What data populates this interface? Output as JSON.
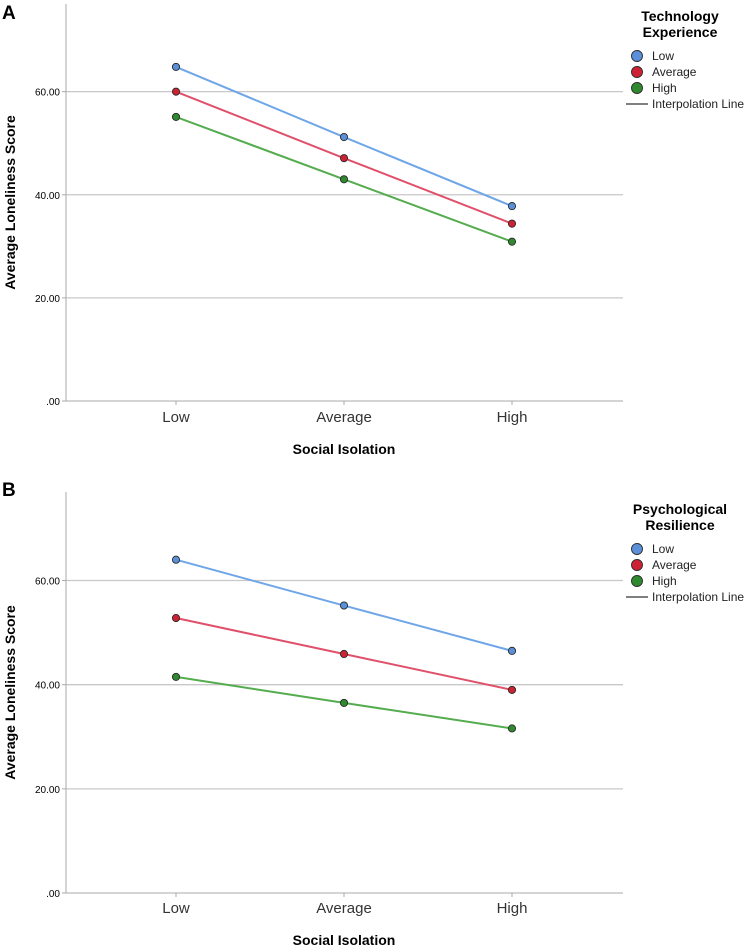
{
  "chart_data": [
    {
      "type": "line",
      "panel_label": "A",
      "categories": [
        "Low",
        "Average",
        "High"
      ],
      "xlabel": "Social Isolation",
      "ylabel": "Average Loneliness Score",
      "ylim": [
        0,
        77
      ],
      "yticks": [
        0,
        20,
        40,
        60
      ],
      "ytick_labels": [
        ".00",
        "20.00",
        "40.00",
        "60.00"
      ],
      "legend": {
        "title_lines": [
          "Technology",
          "Experience"
        ],
        "position": "top-right",
        "interpolation_label": "Interpolation Line"
      },
      "series": [
        {
          "name": "Low",
          "color": "#6fa6e8",
          "marker_color": "#5b8fd9",
          "values": [
            64.8,
            51.2,
            37.8
          ]
        },
        {
          "name": "Average",
          "color": "#e0506b",
          "marker_color": "#cc2233",
          "values": [
            60.0,
            47.1,
            34.4
          ]
        },
        {
          "name": "High",
          "color": "#55ac4f",
          "marker_color": "#2f8a2f",
          "values": [
            55.1,
            43.0,
            30.9
          ]
        }
      ]
    },
    {
      "type": "line",
      "panel_label": "B",
      "categories": [
        "Low",
        "Average",
        "High"
      ],
      "xlabel": "Social Isolation",
      "ylabel": "Average Loneliness Score",
      "ylim": [
        0,
        77
      ],
      "yticks": [
        0,
        20,
        40,
        60
      ],
      "ytick_labels": [
        ".00",
        "20.00",
        "40.00",
        "60.00"
      ],
      "legend": {
        "title_lines": [
          "Psychological",
          "Resilience"
        ],
        "position": "top-right",
        "interpolation_label": "Interpolation Line"
      },
      "series": [
        {
          "name": "Low",
          "color": "#6fa6e8",
          "marker_color": "#5b8fd9",
          "values": [
            64.0,
            55.2,
            46.5
          ]
        },
        {
          "name": "Average",
          "color": "#e0506b",
          "marker_color": "#cc2233",
          "values": [
            52.8,
            45.9,
            39.0
          ]
        },
        {
          "name": "High",
          "color": "#55ac4f",
          "marker_color": "#2f8a2f",
          "values": [
            41.5,
            36.5,
            31.6
          ]
        }
      ]
    }
  ]
}
